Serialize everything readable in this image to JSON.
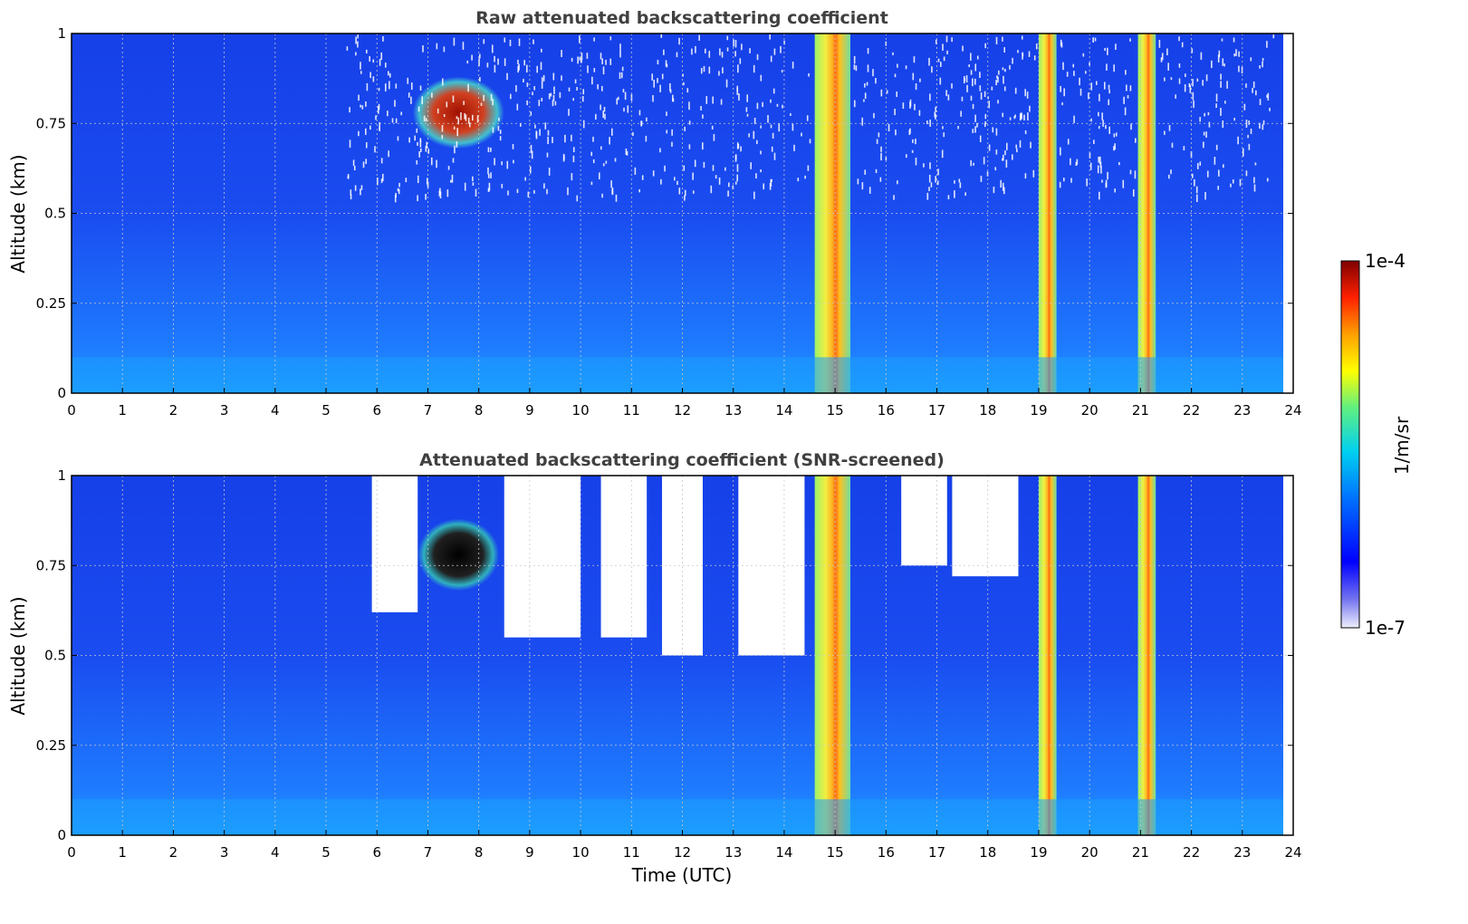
{
  "chart_data": [
    {
      "type": "heatmap",
      "title": "Raw attenuated backscattering coefficient",
      "xlabel": "",
      "ylabel": "Altitude (km)",
      "xlim": [
        0,
        24
      ],
      "ylim": [
        0,
        1
      ],
      "xticks": [
        "0",
        "1",
        "2",
        "3",
        "4",
        "5",
        "6",
        "7",
        "8",
        "9",
        "10",
        "11",
        "12",
        "13",
        "14",
        "15",
        "16",
        "17",
        "18",
        "19",
        "20",
        "21",
        "22",
        "23",
        "24"
      ],
      "yticks": [
        "0",
        "0.25",
        "0.5",
        "0.75",
        "1"
      ],
      "grid": true,
      "features": [
        {
          "label": "aerosol/cloud layer",
          "t_start": 6.7,
          "t_end": 8.5,
          "alt_bottom": 0.68,
          "alt_top": 0.88,
          "level": "high"
        },
        {
          "label": "precipitation/cloud column",
          "t_start": 14.6,
          "t_end": 15.3,
          "alt_bottom": 0,
          "alt_top": 1,
          "level": "mid"
        },
        {
          "label": "precipitation/cloud column",
          "t_start": 19.0,
          "t_end": 19.35,
          "alt_bottom": 0,
          "alt_top": 1,
          "level": "mid"
        },
        {
          "label": "precipitation/cloud column",
          "t_start": 20.95,
          "t_end": 21.3,
          "alt_bottom": 0,
          "alt_top": 1,
          "level": "mid"
        }
      ]
    },
    {
      "type": "heatmap",
      "title": "Attenuated backscattering coefficient (SNR-screened)",
      "xlabel": "Time (UTC)",
      "ylabel": "Altitude (km)",
      "xlim": [
        0,
        24
      ],
      "ylim": [
        0,
        1
      ],
      "xticks": [
        "0",
        "1",
        "2",
        "3",
        "4",
        "5",
        "6",
        "7",
        "8",
        "9",
        "10",
        "11",
        "12",
        "13",
        "14",
        "15",
        "16",
        "17",
        "18",
        "19",
        "20",
        "21",
        "22",
        "23",
        "24"
      ],
      "yticks": [
        "0",
        "0.25",
        "0.5",
        "0.75",
        "1"
      ],
      "grid": true,
      "features": [
        {
          "label": "aerosol/cloud layer",
          "t_start": 6.8,
          "t_end": 8.4,
          "alt_bottom": 0.68,
          "alt_top": 0.88,
          "level": "saturated"
        },
        {
          "label": "precipitation/cloud column",
          "t_start": 14.6,
          "t_end": 15.3,
          "alt_bottom": 0,
          "alt_top": 1,
          "level": "mid"
        },
        {
          "label": "precipitation/cloud column",
          "t_start": 19.0,
          "t_end": 19.35,
          "alt_bottom": 0,
          "alt_top": 1,
          "level": "mid"
        },
        {
          "label": "precipitation/cloud column",
          "t_start": 20.95,
          "t_end": 21.3,
          "alt_bottom": 0,
          "alt_top": 1,
          "level": "mid"
        }
      ]
    }
  ],
  "colorbar": {
    "max_label": "1e-4",
    "min_label": "1e-7",
    "unit_label": "1/m/sr",
    "colors": [
      "#e8e8f8",
      "#0000ff",
      "#00c8ff",
      "#ffff00",
      "#ff6000",
      "#800000"
    ]
  }
}
